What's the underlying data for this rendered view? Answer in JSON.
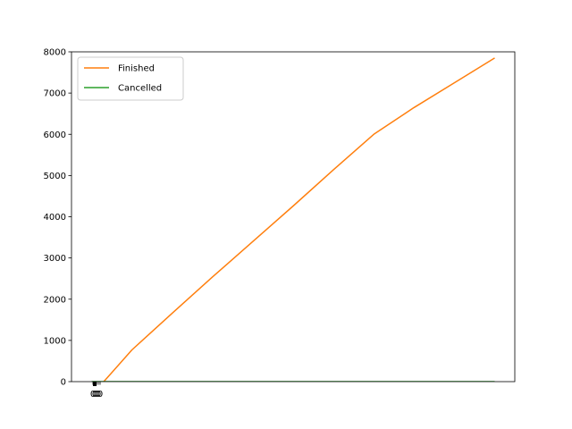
{
  "chart_data": {
    "type": "line",
    "title": "",
    "xlabel": "",
    "ylabel": "",
    "ylim": [
      0,
      8000
    ],
    "yticks": [
      0,
      1000,
      2000,
      3000,
      4000,
      5000,
      6000,
      7000,
      8000
    ],
    "xlim": [
      -50,
      1050
    ],
    "x_tick_labels_overlapping": [
      "0",
      "0",
      "0",
      "0",
      "0"
    ],
    "grid": false,
    "legend": {
      "placement": "top-left",
      "entries": [
        "Finished",
        "Cancelled"
      ]
    },
    "series": [
      {
        "name": "Finished",
        "color": "#ff7f0e",
        "points": [
          [
            0,
            -200
          ],
          [
            20,
            -100
          ],
          [
            30,
            0
          ],
          [
            100,
            770
          ],
          [
            200,
            1660
          ],
          [
            300,
            2540
          ],
          [
            400,
            3400
          ],
          [
            500,
            4260
          ],
          [
            600,
            5140
          ],
          [
            700,
            6000
          ],
          [
            800,
            6650
          ],
          [
            900,
            7250
          ],
          [
            1000,
            7850
          ]
        ]
      },
      {
        "name": "Cancelled",
        "color": "#2ca02c",
        "points": [
          [
            0,
            0
          ],
          [
            1000,
            0
          ]
        ]
      }
    ]
  }
}
